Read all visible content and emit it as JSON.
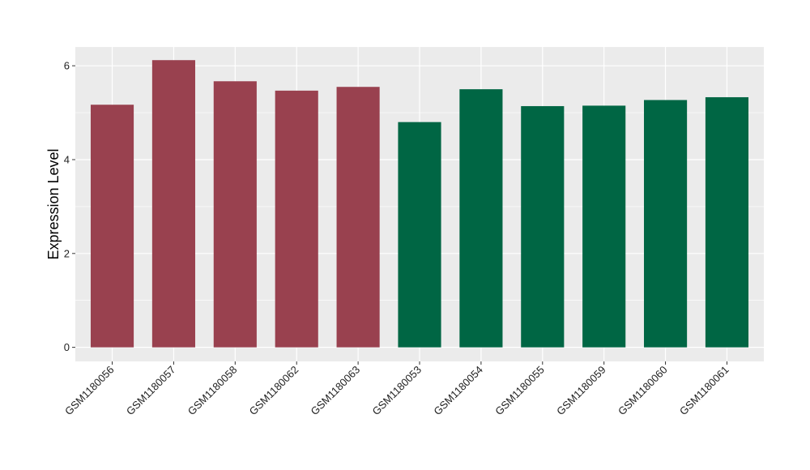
{
  "chart_data": {
    "type": "bar",
    "title": "",
    "xlabel": "",
    "ylabel": "Expression Level",
    "ylim": [
      -0.3,
      6.4
    ],
    "yticks": [
      0,
      2,
      4,
      6
    ],
    "grid": true,
    "legend": "none",
    "categories": [
      "GSM1180056",
      "GSM1180057",
      "GSM1180058",
      "GSM1180062",
      "GSM1180063",
      "GSM1180053",
      "GSM1180054",
      "GSM1180055",
      "GSM1180059",
      "GSM1180060",
      "GSM1180061"
    ],
    "values": [
      5.17,
      6.12,
      5.67,
      5.47,
      5.55,
      4.8,
      5.5,
      5.14,
      5.15,
      5.27,
      5.33
    ],
    "bar_colors": [
      "#99414F",
      "#99414F",
      "#99414F",
      "#99414F",
      "#99414F",
      "#006644",
      "#006644",
      "#006644",
      "#006644",
      "#006644",
      "#006644"
    ],
    "panel_background": "#EBEBEB",
    "gridline_color": "#FFFFFF"
  }
}
